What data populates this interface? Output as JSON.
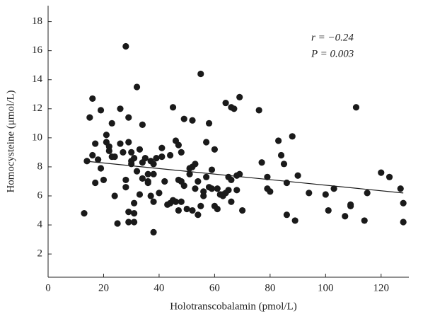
{
  "chart_data": {
    "type": "scatter",
    "x_label": "Holotranscobalamin (pmol/L)",
    "y_label": "Homocysteine (μmol/L)",
    "annotations": [
      "r = −0.24",
      "P = 0.003"
    ],
    "xlim": [
      0,
      130
    ],
    "ylim": [
      0.4,
      19.1
    ],
    "xticks": [
      0,
      20,
      40,
      60,
      80,
      100,
      120
    ],
    "yticks": [
      2,
      4,
      6,
      8,
      10,
      12,
      14,
      16,
      18
    ],
    "color": "#1a1a1a",
    "line_color": "#1a1a1a",
    "trendline": {
      "x": [
        13,
        128
      ],
      "values": [
        8.4,
        6.2
      ]
    },
    "x": [
      13,
      14,
      15,
      16,
      16,
      17,
      17,
      18,
      19,
      19,
      20,
      21,
      21,
      22,
      22,
      23,
      23,
      24,
      24,
      25,
      26,
      26,
      27,
      28,
      28,
      28,
      29,
      29,
      29,
      29,
      30,
      30,
      30,
      31,
      31,
      31,
      31,
      32,
      32,
      33,
      33,
      34,
      34,
      34,
      35,
      36,
      36,
      36,
      37,
      37,
      38,
      38,
      38,
      38,
      39,
      40,
      41,
      41,
      42,
      43,
      44,
      44,
      45,
      45,
      46,
      46,
      47,
      47,
      47,
      48,
      48,
      48,
      49,
      49,
      50,
      51,
      51,
      52,
      52,
      52,
      53,
      53,
      54,
      54,
      55,
      55,
      56,
      56,
      57,
      57,
      58,
      58,
      59,
      59,
      60,
      60,
      61,
      61,
      62,
      63,
      63,
      64,
      64,
      65,
      65,
      66,
      66,
      66,
      67,
      68,
      68,
      69,
      69,
      70,
      76,
      77,
      79,
      79,
      80,
      83,
      84,
      85,
      86,
      86,
      88,
      89,
      90,
      94,
      100,
      101,
      103,
      107,
      109,
      109,
      111,
      114,
      115,
      120,
      123,
      127,
      128,
      128
    ],
    "values": [
      4.8,
      8.4,
      11.4,
      12.7,
      8.8,
      9.6,
      6.9,
      8.5,
      11.9,
      7.9,
      7.1,
      10.2,
      9.7,
      9.4,
      9.1,
      11.0,
      8.7,
      8.7,
      6.0,
      4.1,
      9.6,
      12.0,
      9.0,
      6.6,
      7.1,
      16.3,
      11.4,
      9.7,
      4.2,
      4.9,
      9.0,
      8.4,
      8.2,
      8.6,
      5.5,
      4.8,
      4.2,
      7.7,
      13.5,
      9.2,
      6.1,
      10.9,
      8.3,
      7.2,
      8.6,
      7.5,
      7.0,
      6.9,
      8.4,
      6.0,
      8.2,
      7.5,
      5.6,
      3.5,
      8.6,
      6.2,
      9.3,
      8.7,
      7.0,
      5.4,
      5.5,
      8.8,
      12.1,
      5.7,
      5.6,
      9.8,
      9.5,
      7.1,
      5.0,
      5.6,
      7.0,
      9.0,
      11.3,
      6.7,
      5.1,
      7.5,
      7.9,
      11.2,
      8.0,
      5.0,
      8.2,
      6.5,
      7.0,
      4.7,
      14.4,
      5.3,
      6.3,
      6.0,
      7.3,
      9.7,
      6.6,
      11.0,
      6.5,
      7.8,
      9.2,
      5.3,
      6.5,
      5.1,
      6.1,
      6.0,
      6.1,
      12.4,
      6.2,
      6.4,
      7.3,
      12.1,
      7.1,
      5.6,
      12.0,
      7.4,
      6.4,
      12.8,
      7.5,
      5.0,
      11.9,
      8.3,
      7.3,
      6.5,
      6.3,
      9.8,
      8.8,
      8.2,
      6.9,
      4.7,
      10.1,
      4.3,
      7.4,
      6.2,
      6.1,
      5.0,
      6.5,
      4.6,
      5.4,
      5.3,
      12.1,
      4.3,
      6.2,
      7.6,
      7.3,
      6.5,
      5.5,
      4.2
    ]
  }
}
